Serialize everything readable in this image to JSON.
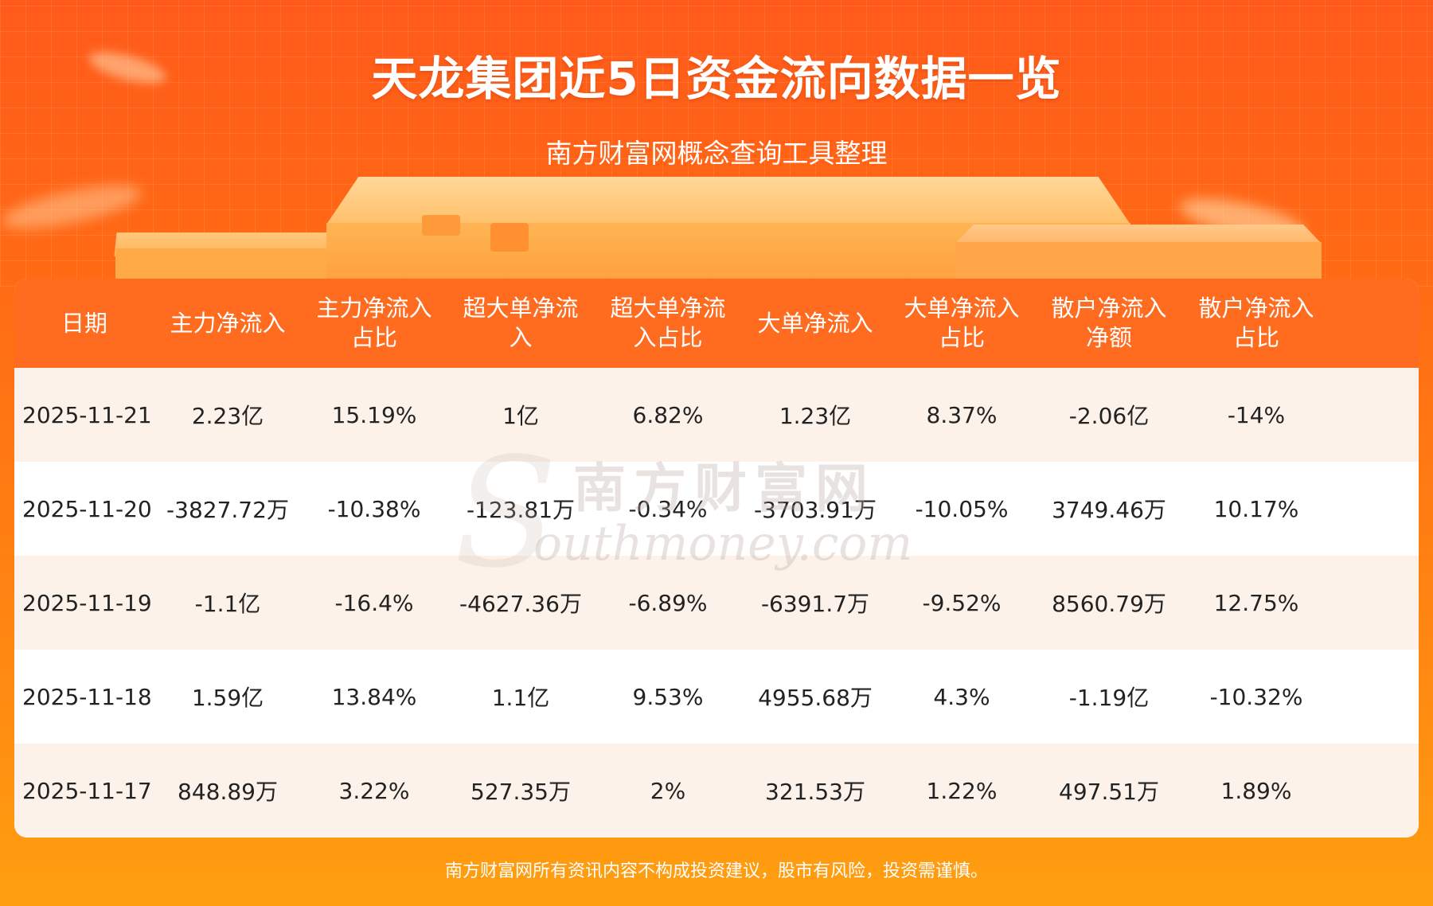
{
  "header": {
    "title": "天龙集团近5日资金流向数据一览",
    "subtitle": "南方财富网概念查询工具整理"
  },
  "table": {
    "columns": [
      "日期",
      "主力净流入",
      "主力净流入\n占比",
      "超大单净流\n入",
      "超大单净流\n入占比",
      "大单净流入",
      "大单净流入\n占比",
      "散户净流入\n净额",
      "散户净流入\n占比"
    ],
    "rows": [
      [
        "2025-11-21",
        "2.23亿",
        "15.19%",
        "1亿",
        "6.82%",
        "1.23亿",
        "8.37%",
        "-2.06亿",
        "-14%"
      ],
      [
        "2025-11-20",
        "-3827.72万",
        "-10.38%",
        "-123.81万",
        "-0.34%",
        "-3703.91万",
        "-10.05%",
        "3749.46万",
        "10.17%"
      ],
      [
        "2025-11-19",
        "-1.1亿",
        "-16.4%",
        "-4627.36万",
        "-6.89%",
        "-6391.7万",
        "-9.52%",
        "8560.79万",
        "12.75%"
      ],
      [
        "2025-11-18",
        "1.59亿",
        "13.84%",
        "1.1亿",
        "9.53%",
        "4955.68万",
        "4.3%",
        "-1.19亿",
        "-10.32%"
      ],
      [
        "2025-11-17",
        "848.89万",
        "3.22%",
        "527.35万",
        "2%",
        "321.53万",
        "1.22%",
        "497.51万",
        "1.89%"
      ]
    ]
  },
  "watermark": {
    "cn": "南方财富网",
    "en": "outhmoney.com",
    "logo_letter": "S"
  },
  "footer": {
    "disclaimer": "南方财富网所有资讯内容不构成投资建议，股市有风险，投资需谨慎。"
  },
  "colors": {
    "header_bg": "#ff6b1f",
    "row_alt_bg": "#fdf2ea",
    "page_bg_top": "#ff5a1a",
    "page_bg_bottom": "#ff9f10"
  }
}
